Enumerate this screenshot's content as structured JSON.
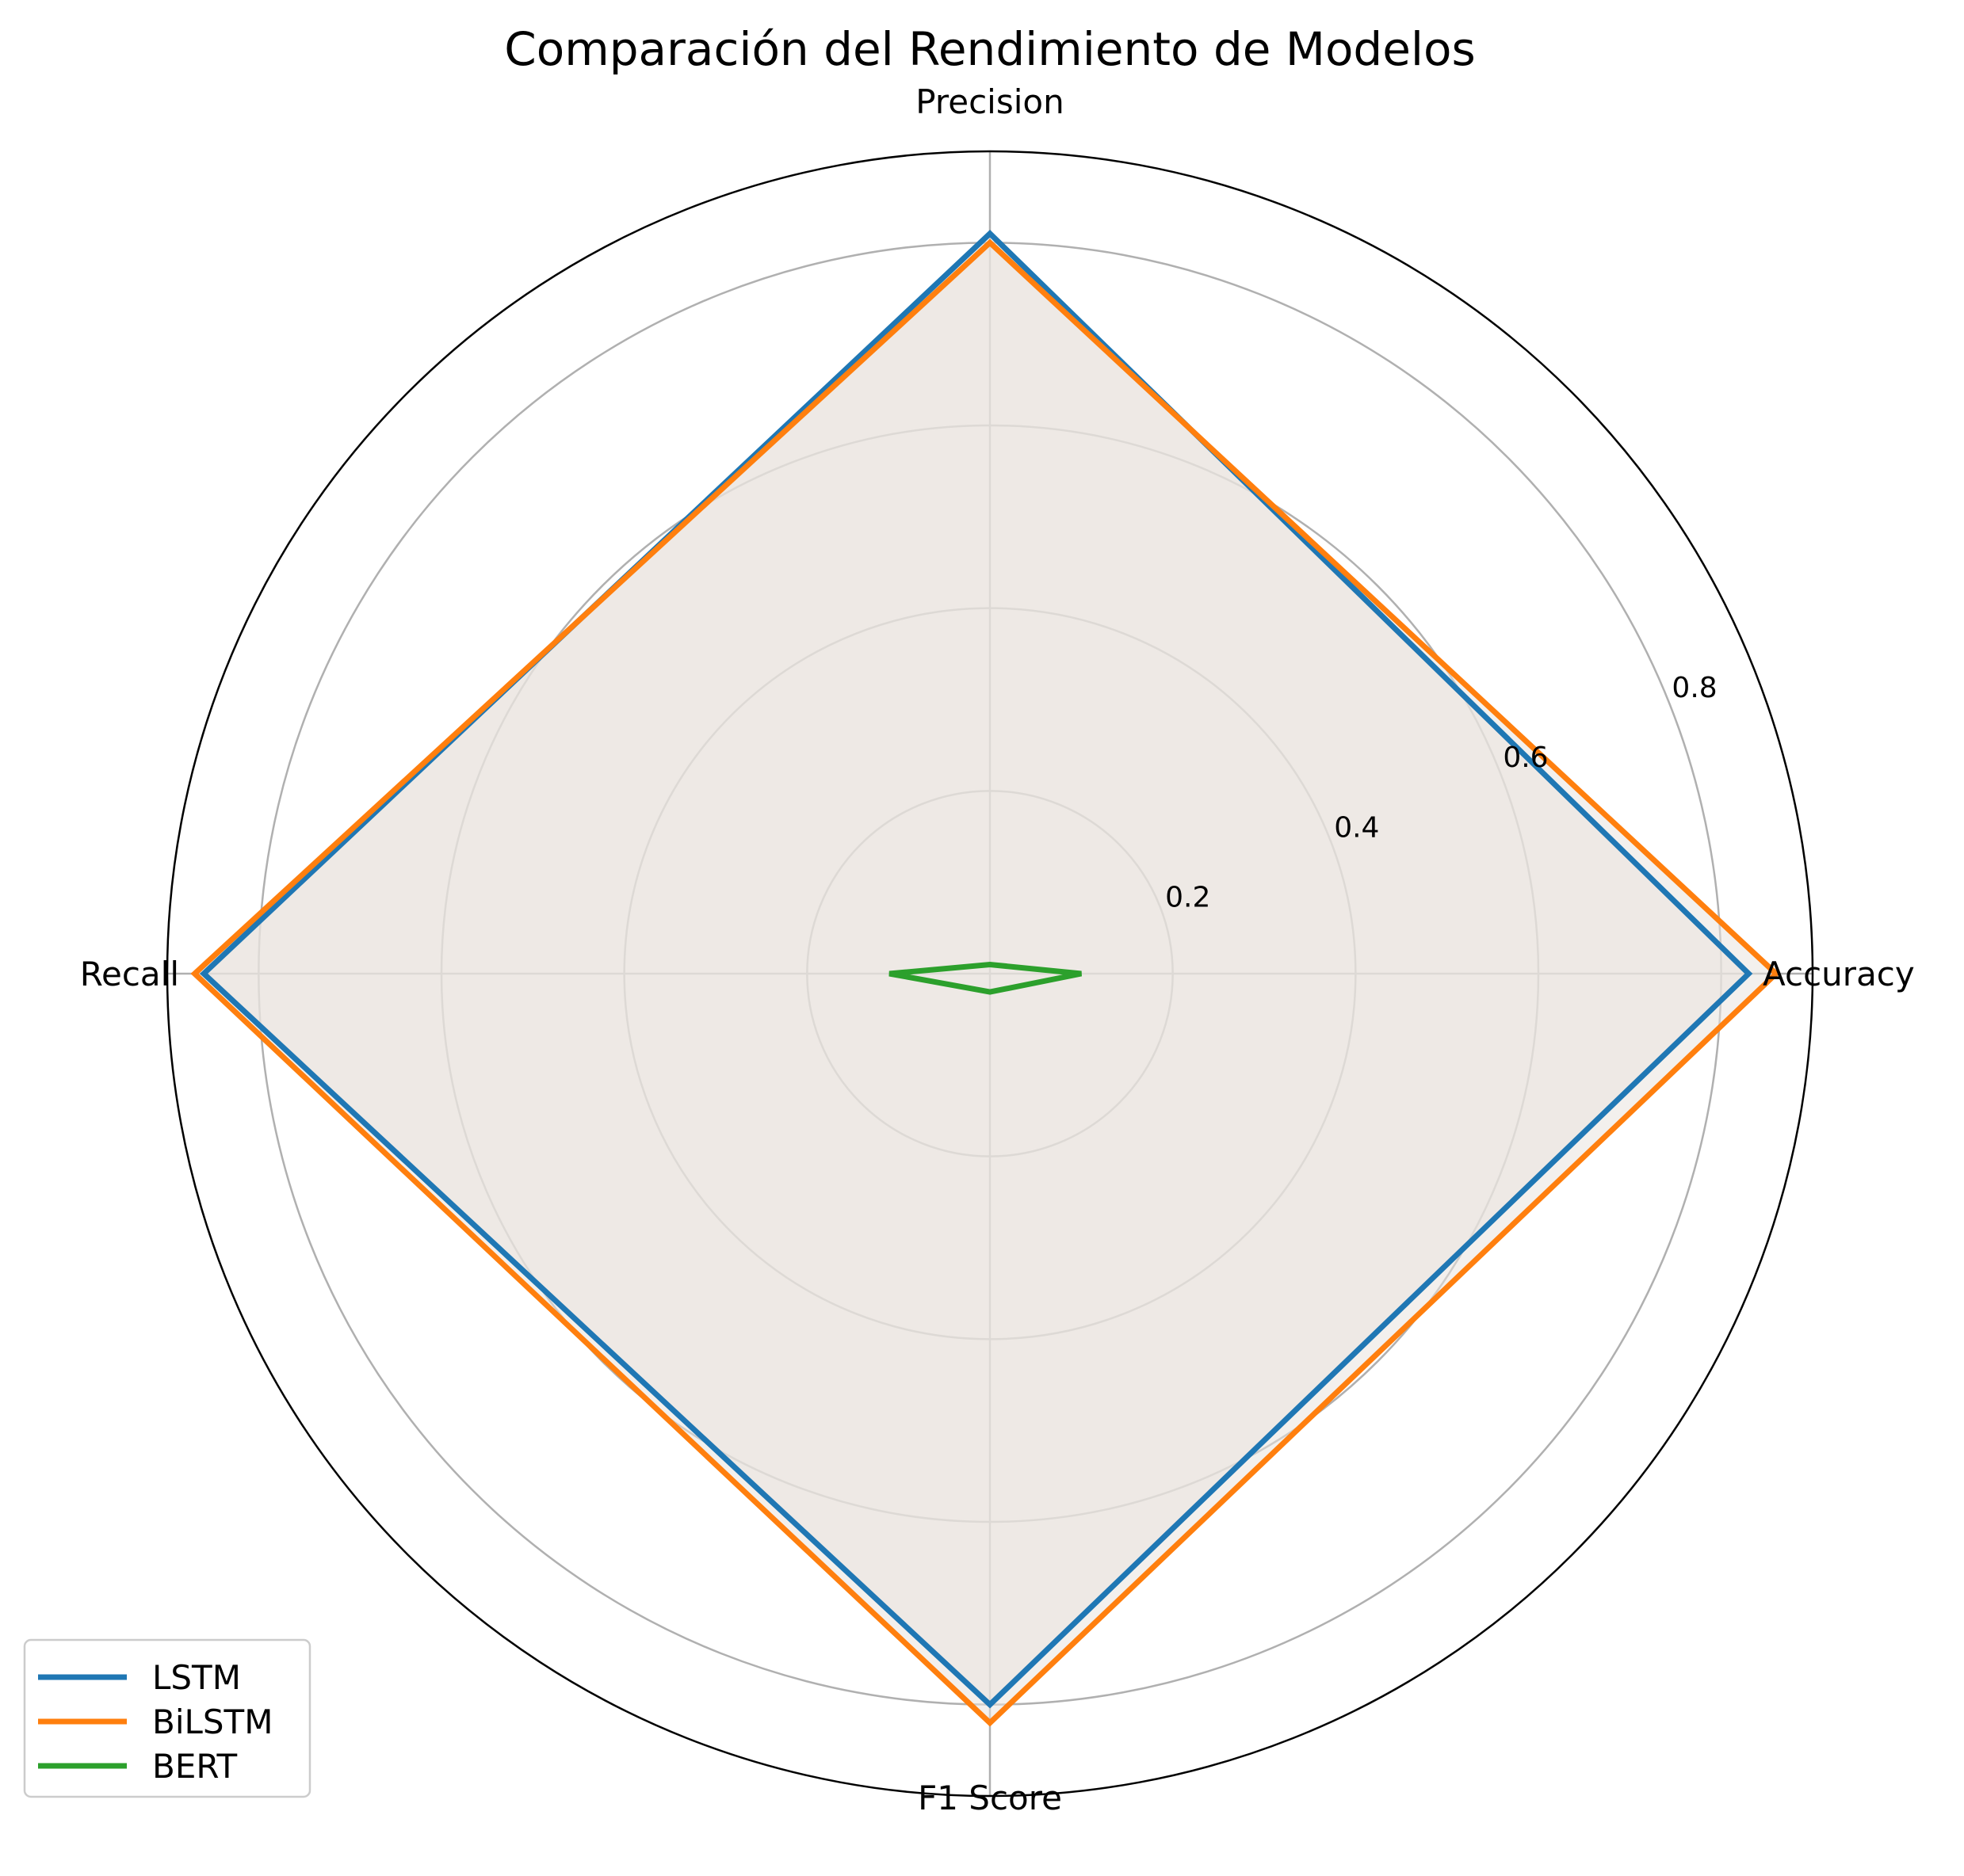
{
  "chart_data": {
    "type": "radar",
    "title": "Comparación del Rendimiento de Modelos",
    "axes": [
      "Accuracy",
      "Precision",
      "Recall",
      "F1 Score"
    ],
    "rticks": [
      0.2,
      0.4,
      0.6,
      0.8
    ],
    "rticklabels": [
      "0.2",
      "0.4",
      "0.6",
      "0.8"
    ],
    "rlim": [
      0,
      0.9
    ],
    "grid": true,
    "legend_position": "lower-left",
    "series": [
      {
        "name": "LSTM",
        "color": "#1f77b4",
        "values": [
          0.83,
          0.81,
          0.86,
          0.8
        ],
        "fill": true
      },
      {
        "name": "BiLSTM",
        "color": "#ff7f0e",
        "values": [
          0.86,
          0.8,
          0.87,
          0.82
        ],
        "fill": true
      },
      {
        "name": "BERT",
        "color": "#2ca02c",
        "values": [
          0.1,
          0.01,
          0.11,
          0.02
        ],
        "fill": false
      }
    ],
    "fill_color": "#e9e4df",
    "grid_color": "#b0b0b0"
  }
}
